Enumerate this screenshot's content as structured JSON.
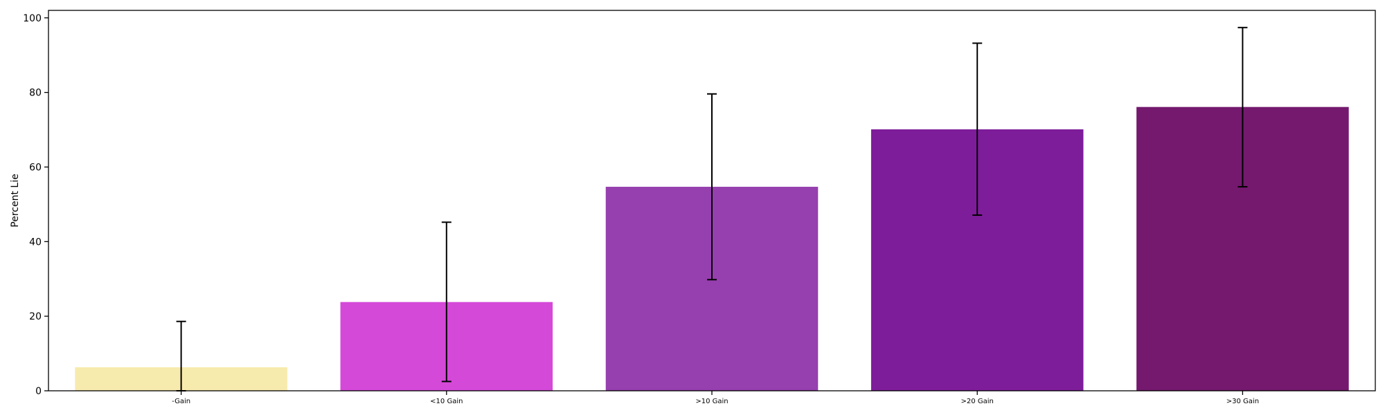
{
  "chart_data": {
    "type": "bar",
    "title": "",
    "xlabel": "",
    "ylabel": "Percent Lie",
    "ylim": [
      0,
      102
    ],
    "yticks": [
      0,
      20,
      40,
      60,
      80,
      100
    ],
    "grid": false,
    "categories": [
      "-Gain",
      "<10 Gain",
      ">10 Gain",
      ">20 Gain",
      ">30 Gain"
    ],
    "values": [
      6.3,
      23.8,
      54.7,
      70.1,
      76.1
    ],
    "error_low": [
      0.0,
      2.5,
      29.8,
      47.1,
      54.7
    ],
    "error_high": [
      18.6,
      45.2,
      79.6,
      93.2,
      97.4
    ],
    "colors": [
      "#f7eaad",
      "#d549d8",
      "#963fae",
      "#7e1d9a",
      "#74196e"
    ]
  }
}
